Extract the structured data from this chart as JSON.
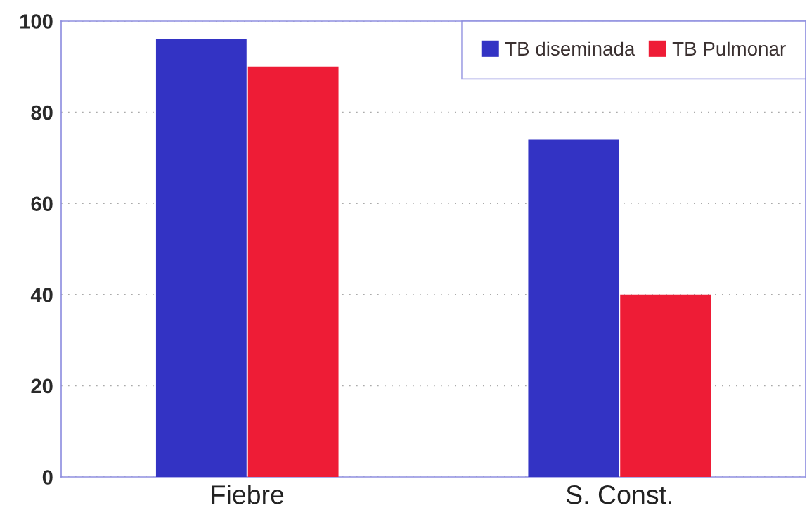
{
  "chart_data": {
    "type": "bar",
    "categories": [
      "Fiebre",
      "S. Const."
    ],
    "series": [
      {
        "name": "TB diseminada",
        "color": "#3333c4",
        "values": [
          96,
          74
        ]
      },
      {
        "name": "TB Pulmonar",
        "color": "#ee1c36",
        "values": [
          90,
          40
        ]
      }
    ],
    "ylim": [
      0,
      100
    ],
    "yticks": [
      0,
      20,
      40,
      60,
      80,
      100
    ],
    "grid": "y",
    "legend": "top right"
  }
}
